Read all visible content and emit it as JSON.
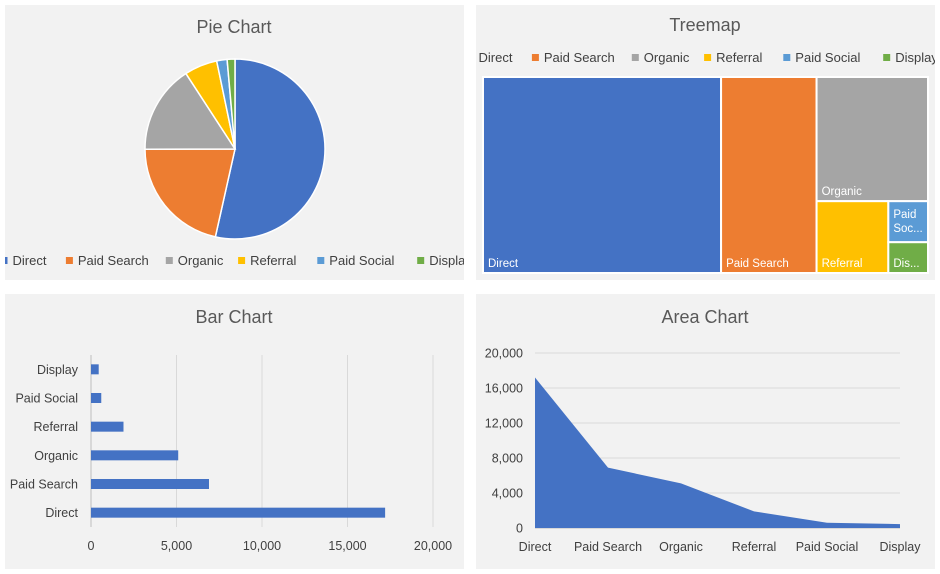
{
  "colors": {
    "Direct": "#4472c4",
    "Paid Search": "#ed7d31",
    "Organic": "#a5a5a5",
    "Referral": "#ffc000",
    "Paid Social": "#5b9bd5",
    "Display": "#70ad47"
  },
  "chart_data": [
    {
      "type": "pie",
      "title": "Pie Chart",
      "categories": [
        "Direct",
        "Paid Search",
        "Organic",
        "Referral",
        "Paid Social",
        "Display"
      ],
      "values": [
        17200,
        6900,
        5100,
        1900,
        600,
        450
      ],
      "legend": "bottom"
    },
    {
      "type": "treemap",
      "title": "Treemap",
      "categories": [
        "Direct",
        "Paid Search",
        "Organic",
        "Referral",
        "Paid Social",
        "Display"
      ],
      "labels": [
        "Direct",
        "Paid Search",
        "Organic",
        "Referral",
        "Paid\nSoc...",
        "Dis..."
      ],
      "values": [
        17200,
        6900,
        5100,
        1900,
        600,
        450
      ],
      "legend": "top"
    },
    {
      "type": "bar",
      "orientation": "horizontal",
      "title": "Bar Chart",
      "categories": [
        "Direct",
        "Paid Search",
        "Organic",
        "Referral",
        "Paid Social",
        "Display"
      ],
      "values": [
        17200,
        6900,
        5100,
        1900,
        600,
        450
      ],
      "xlim": [
        0,
        20000
      ],
      "xticks": [
        "0",
        "5,000",
        "10,000",
        "15,000",
        "20,000"
      ],
      "grid": true
    },
    {
      "type": "area",
      "title": "Area Chart",
      "categories": [
        "Direct",
        "Paid Search",
        "Organic",
        "Referral",
        "Paid Social",
        "Display"
      ],
      "values": [
        17200,
        6900,
        5100,
        1900,
        600,
        450
      ],
      "ylim": [
        0,
        20000
      ],
      "yticks": [
        "0",
        "4,000",
        "8,000",
        "12,000",
        "16,000",
        "20,000"
      ],
      "grid": true
    }
  ]
}
